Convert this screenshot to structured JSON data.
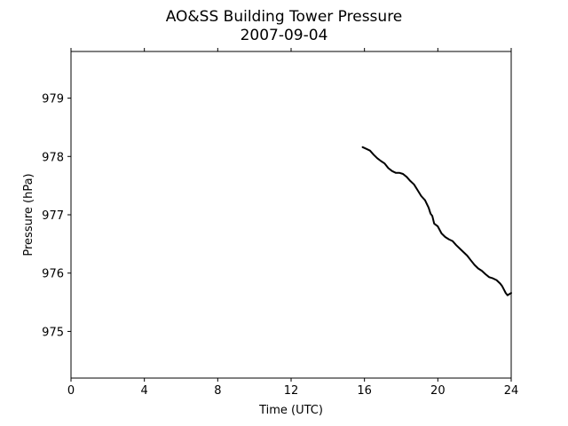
{
  "chart_data": {
    "type": "line",
    "title": "AO&SS Building Tower Pressure",
    "subtitle": "2007-09-04",
    "xlabel": "Time (UTC)",
    "ylabel": "Pressure (hPa)",
    "xlim": [
      0,
      24
    ],
    "ylim": [
      974.2,
      979.8
    ],
    "xticks": [
      0,
      4,
      8,
      12,
      16,
      20,
      24
    ],
    "yticks": [
      975,
      976,
      977,
      978,
      979
    ],
    "grid": false,
    "series": [
      {
        "color": "#000000",
        "x": [
          15.9,
          16.1,
          16.3,
          16.5,
          16.7,
          16.9,
          17.1,
          17.3,
          17.5,
          17.7,
          17.9,
          18.1,
          18.3,
          18.5,
          18.7,
          18.9,
          19.1,
          19.3,
          19.5,
          19.6,
          19.7,
          19.8,
          20.0,
          20.2,
          20.4,
          20.6,
          20.8,
          21.0,
          21.2,
          21.4,
          21.6,
          21.8,
          22.0,
          22.2,
          22.4,
          22.6,
          22.8,
          23.0,
          23.2,
          23.4,
          23.5,
          23.6,
          23.7,
          23.8,
          23.9,
          24.0
        ],
        "y": [
          978.16,
          978.13,
          978.1,
          978.03,
          977.97,
          977.92,
          977.88,
          977.8,
          977.75,
          977.72,
          977.72,
          977.7,
          977.65,
          977.58,
          977.52,
          977.42,
          977.32,
          977.25,
          977.12,
          977.02,
          976.98,
          976.85,
          976.8,
          976.68,
          976.62,
          976.58,
          976.55,
          976.48,
          976.42,
          976.36,
          976.3,
          976.22,
          976.14,
          976.08,
          976.04,
          975.98,
          975.93,
          975.91,
          975.88,
          975.82,
          975.78,
          975.72,
          975.66,
          975.62,
          975.64,
          975.66
        ]
      }
    ]
  }
}
